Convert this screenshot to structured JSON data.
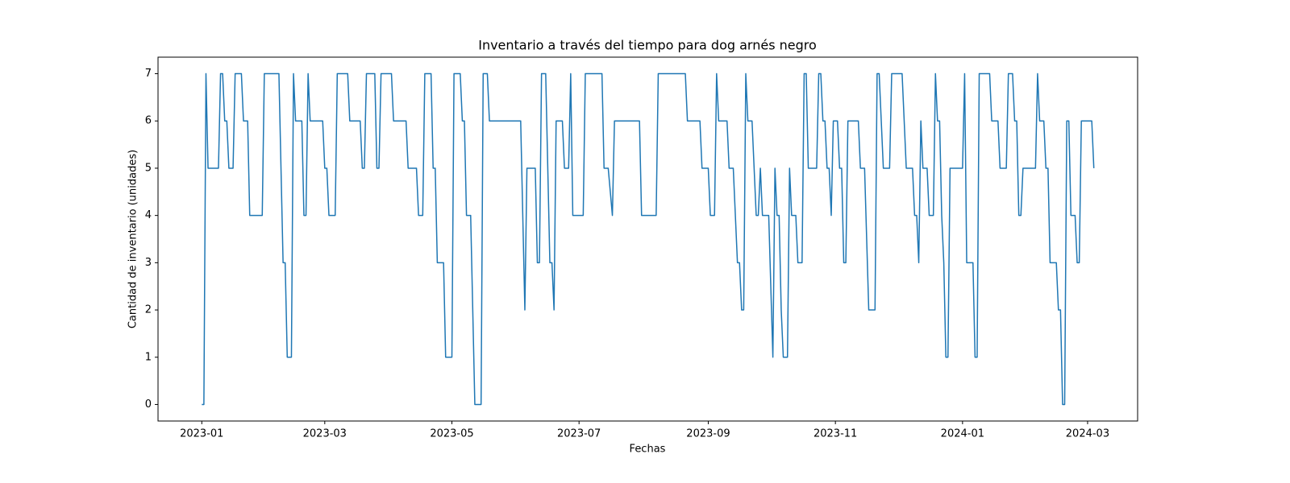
{
  "chart_data": {
    "type": "line",
    "title": "Inventario a través del tiempo para dog arnés negro",
    "xlabel": "Fechas",
    "ylabel": "Cantidad de inventario (unidades)",
    "color": "#1f77b4",
    "grid": false,
    "xlim": [
      "2022-12-11",
      "2024-03-25"
    ],
    "ylim": [
      -0.35,
      7.35
    ],
    "xticks": [
      {
        "value": "2023-01-01",
        "label": "2023-01"
      },
      {
        "value": "2023-03-01",
        "label": "2023-03"
      },
      {
        "value": "2023-05-01",
        "label": "2023-05"
      },
      {
        "value": "2023-07-01",
        "label": "2023-07"
      },
      {
        "value": "2023-09-01",
        "label": "2023-09"
      },
      {
        "value": "2023-11-01",
        "label": "2023-11"
      },
      {
        "value": "2024-01-01",
        "label": "2024-01"
      },
      {
        "value": "2024-03-01",
        "label": "2024-03"
      }
    ],
    "yticks": [
      0,
      1,
      2,
      3,
      4,
      5,
      6,
      7
    ],
    "x": [
      "2023-01-01",
      "2023-01-02",
      "2023-01-03",
      "2023-01-04",
      "2023-01-09",
      "2023-01-10",
      "2023-01-11",
      "2023-01-12",
      "2023-01-13",
      "2023-01-14",
      "2023-01-16",
      "2023-01-17",
      "2023-01-20",
      "2023-01-21",
      "2023-01-23",
      "2023-01-24",
      "2023-01-30",
      "2023-01-31",
      "2023-02-07",
      "2023-02-09",
      "2023-02-10",
      "2023-02-11",
      "2023-02-13",
      "2023-02-14",
      "2023-02-15",
      "2023-02-18",
      "2023-02-19",
      "2023-02-20",
      "2023-02-21",
      "2023-02-22",
      "2023-02-28",
      "2023-03-01",
      "2023-03-02",
      "2023-03-03",
      "2023-03-06",
      "2023-03-07",
      "2023-03-12",
      "2023-03-13",
      "2023-03-18",
      "2023-03-19",
      "2023-03-20",
      "2023-03-21",
      "2023-03-25",
      "2023-03-26",
      "2023-03-27",
      "2023-03-28",
      "2023-04-02",
      "2023-04-03",
      "2023-04-09",
      "2023-04-10",
      "2023-04-14",
      "2023-04-15",
      "2023-04-17",
      "2023-04-18",
      "2023-04-21",
      "2023-04-22",
      "2023-04-23",
      "2023-04-24",
      "2023-04-27",
      "2023-04-28",
      "2023-05-01",
      "2023-05-02",
      "2023-05-05",
      "2023-05-06",
      "2023-05-07",
      "2023-05-08",
      "2023-05-10",
      "2023-05-12",
      "2023-05-15",
      "2023-05-16",
      "2023-05-18",
      "2023-05-19",
      "2023-06-03",
      "2023-06-05",
      "2023-06-06",
      "2023-06-10",
      "2023-06-11",
      "2023-06-12",
      "2023-06-13",
      "2023-06-15",
      "2023-06-17",
      "2023-06-18",
      "2023-06-19",
      "2023-06-20",
      "2023-06-23",
      "2023-06-24",
      "2023-06-26",
      "2023-06-27",
      "2023-06-28",
      "2023-07-03",
      "2023-07-04",
      "2023-07-12",
      "2023-07-13",
      "2023-07-15",
      "2023-07-17",
      "2023-07-18",
      "2023-07-30",
      "2023-07-31",
      "2023-08-07",
      "2023-08-08",
      "2023-08-21",
      "2023-08-22",
      "2023-08-28",
      "2023-08-29",
      "2023-09-01",
      "2023-09-02",
      "2023-09-04",
      "2023-09-05",
      "2023-09-06",
      "2023-09-10",
      "2023-09-11",
      "2023-09-13",
      "2023-09-15",
      "2023-09-16",
      "2023-09-17",
      "2023-09-18",
      "2023-09-19",
      "2023-09-20",
      "2023-09-22",
      "2023-09-24",
      "2023-09-25",
      "2023-09-26",
      "2023-09-27",
      "2023-09-30",
      "2023-10-02",
      "2023-10-03",
      "2023-10-04",
      "2023-10-05",
      "2023-10-06",
      "2023-10-07",
      "2023-10-09",
      "2023-10-10",
      "2023-10-11",
      "2023-10-13",
      "2023-10-14",
      "2023-10-16",
      "2023-10-17",
      "2023-10-18",
      "2023-10-19",
      "2023-10-23",
      "2023-10-24",
      "2023-10-25",
      "2023-10-26",
      "2023-10-27",
      "2023-10-28",
      "2023-10-29",
      "2023-10-30",
      "2023-10-31",
      "2023-11-02",
      "2023-11-03",
      "2023-11-04",
      "2023-11-05",
      "2023-11-06",
      "2023-11-07",
      "2023-11-12",
      "2023-11-13",
      "2023-11-15",
      "2023-11-17",
      "2023-11-20",
      "2023-11-21",
      "2023-11-22",
      "2023-11-23",
      "2023-11-24",
      "2023-11-27",
      "2023-11-28",
      "2023-12-03",
      "2023-12-04",
      "2023-12-05",
      "2023-12-08",
      "2023-12-09",
      "2023-12-10",
      "2023-12-11",
      "2023-12-12",
      "2023-12-13",
      "2023-12-15",
      "2023-12-16",
      "2023-12-18",
      "2023-12-19",
      "2023-12-20",
      "2023-12-21",
      "2023-12-22",
      "2023-12-23",
      "2023-12-24",
      "2023-12-25",
      "2023-12-26",
      "2024-01-01",
      "2024-01-02",
      "2024-01-03",
      "2024-01-06",
      "2024-01-07",
      "2024-01-08",
      "2024-01-09",
      "2024-01-14",
      "2024-01-15",
      "2024-01-18",
      "2024-01-19",
      "2024-01-22",
      "2024-01-23",
      "2024-01-25",
      "2024-01-26",
      "2024-01-27",
      "2024-01-28",
      "2024-01-29",
      "2024-01-30",
      "2024-02-05",
      "2024-02-06",
      "2024-02-07",
      "2024-02-09",
      "2024-02-10",
      "2024-02-11",
      "2024-02-12",
      "2024-02-15",
      "2024-02-16",
      "2024-02-17",
      "2024-02-18",
      "2024-02-19",
      "2024-02-20",
      "2024-02-21",
      "2024-02-22",
      "2024-02-24",
      "2024-02-25",
      "2024-02-26",
      "2024-02-27",
      "2024-03-03",
      "2024-03-04"
    ],
    "values": [
      0,
      0,
      7,
      5,
      5,
      7,
      7,
      6,
      6,
      5,
      5,
      7,
      7,
      6,
      6,
      4,
      4,
      7,
      7,
      3,
      3,
      1,
      1,
      7,
      6,
      6,
      4,
      4,
      7,
      6,
      6,
      5,
      5,
      4,
      4,
      7,
      7,
      6,
      6,
      5,
      5,
      7,
      7,
      5,
      5,
      7,
      7,
      6,
      6,
      5,
      5,
      4,
      4,
      7,
      7,
      5,
      5,
      3,
      3,
      1,
      1,
      7,
      7,
      6,
      6,
      4,
      4,
      0,
      0,
      7,
      7,
      6,
      6,
      2,
      5,
      5,
      3,
      3,
      7,
      7,
      3,
      3,
      2,
      6,
      6,
      5,
      5,
      7,
      4,
      4,
      7,
      7,
      5,
      5,
      4,
      6,
      6,
      4,
      4,
      7,
      7,
      6,
      6,
      5,
      5,
      4,
      4,
      7,
      6,
      6,
      5,
      5,
      3,
      3,
      2,
      2,
      7,
      6,
      6,
      4,
      4,
      5,
      4,
      4,
      1,
      5,
      4,
      4,
      2,
      1,
      1,
      5,
      4,
      4,
      3,
      3,
      7,
      7,
      5,
      5,
      7,
      7,
      6,
      6,
      5,
      5,
      4,
      6,
      6,
      5,
      5,
      3,
      3,
      6,
      6,
      5,
      5,
      2,
      2,
      7,
      7,
      6,
      5,
      5,
      7,
      7,
      6,
      5,
      5,
      4,
      4,
      3,
      6,
      5,
      5,
      4,
      4,
      7,
      6,
      6,
      4,
      3,
      1,
      1,
      5,
      5,
      7,
      3,
      3,
      1,
      1,
      7,
      7,
      6,
      6,
      5,
      5,
      7,
      7,
      6,
      6,
      4,
      4,
      5,
      5,
      7,
      6,
      6,
      5,
      5,
      3,
      3,
      2,
      2,
      0,
      0,
      6,
      6,
      4,
      4,
      3,
      3,
      6,
      6,
      5
    ]
  }
}
